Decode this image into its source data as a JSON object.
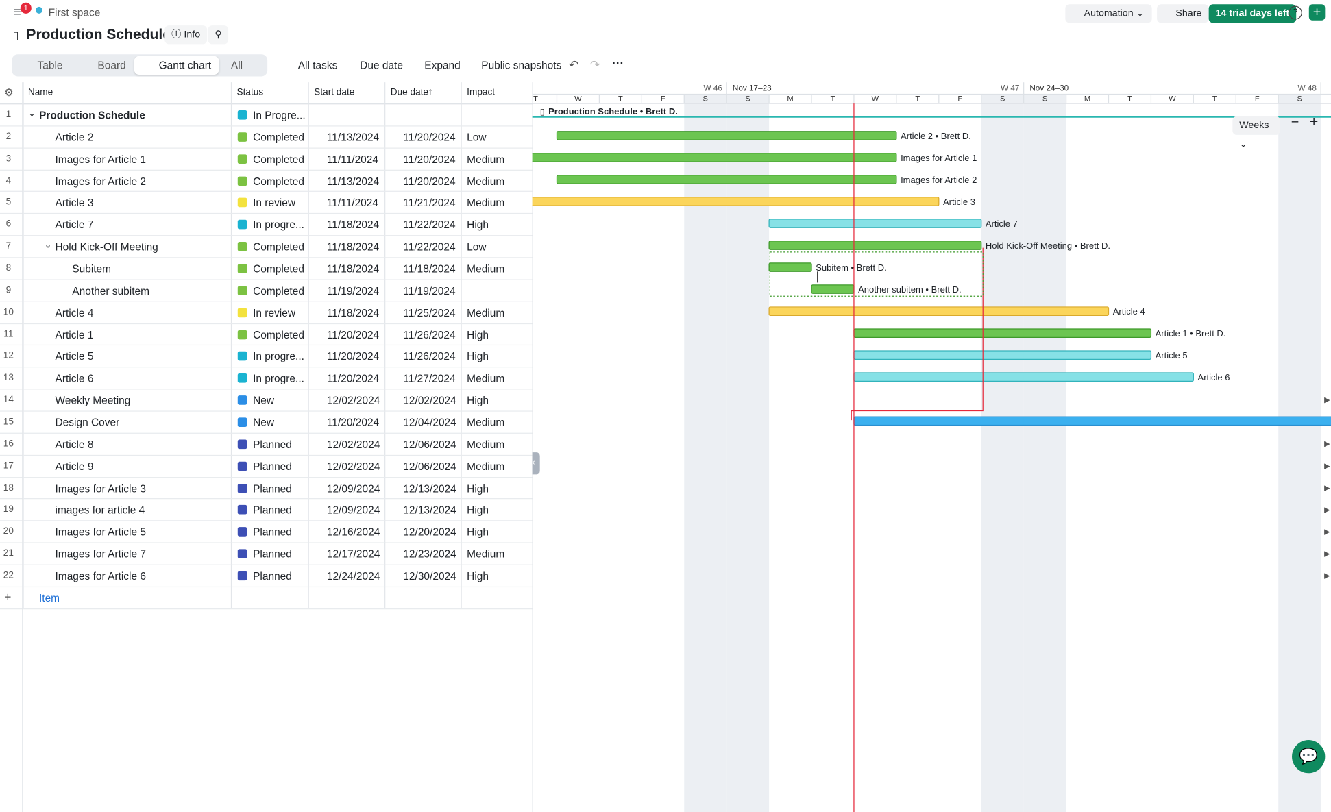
{
  "topbar": {
    "notifications": "1",
    "space": "First space",
    "automation": "Automation",
    "share": "Share",
    "trial": "14 trial days left"
  },
  "header": {
    "title": "Production Schedule",
    "info": "Info"
  },
  "views": [
    "Table",
    "Board",
    "Gantt chart",
    "All"
  ],
  "toolbar": [
    "All tasks",
    "Due date",
    "Expand",
    "Public snapshots"
  ],
  "columns": [
    "Name",
    "Status",
    "Start date",
    "Due date",
    "Impact"
  ],
  "rows": [
    {
      "no": 1,
      "level": 0,
      "collapsible": true,
      "name": "Production Schedule",
      "status": "In Progre...",
      "status_color": "#1ab3d1",
      "bar_label": "Production Schedule • Brett D."
    },
    {
      "no": 2,
      "level": 1,
      "name": "Article 2",
      "status": "Completed",
      "status_color": "#7cc242",
      "start": "11/13/2024",
      "due": "11/20/2024",
      "impact": "Low",
      "bar_label": "Article 2 • Brett D."
    },
    {
      "no": 3,
      "level": 1,
      "name": "Images for Article 1",
      "status": "Completed",
      "status_color": "#7cc242",
      "start": "11/11/2024",
      "due": "11/20/2024",
      "impact": "Medium",
      "bar_label": "Images for Article 1"
    },
    {
      "no": 4,
      "level": 1,
      "name": "Images for Article 2",
      "status": "Completed",
      "status_color": "#7cc242",
      "start": "11/13/2024",
      "due": "11/20/2024",
      "impact": "Medium",
      "bar_label": "Images for Article 2"
    },
    {
      "no": 5,
      "level": 1,
      "name": "Article 3",
      "status": "In review",
      "status_color": "#f3e23e",
      "start": "11/11/2024",
      "due": "11/21/2024",
      "impact": "Medium",
      "bar_label": "Article 3"
    },
    {
      "no": 6,
      "level": 1,
      "name": "Article 7",
      "status": "In progre...",
      "status_color": "#1ab3d1",
      "start": "11/18/2024",
      "due": "11/22/2024",
      "impact": "High",
      "bar_label": "Article 7"
    },
    {
      "no": 7,
      "level": 1,
      "collapsible": true,
      "name": "Hold Kick-Off Meeting",
      "status": "Completed",
      "status_color": "#7cc242",
      "start": "11/18/2024",
      "due": "11/22/2024",
      "impact": "Low",
      "bar_label": "Hold Kick-Off Meeting • Brett D."
    },
    {
      "no": 8,
      "level": 2,
      "name": "Subitem",
      "status": "Completed",
      "status_color": "#7cc242",
      "start": "11/18/2024",
      "due": "11/18/2024",
      "impact": "Medium",
      "bar_label": "Subitem • Brett D."
    },
    {
      "no": 9,
      "level": 2,
      "name": "Another subitem",
      "status": "Completed",
      "status_color": "#7cc242",
      "start": "11/19/2024",
      "due": "11/19/2024",
      "bar_label": "Another subitem • Brett D."
    },
    {
      "no": 10,
      "level": 1,
      "name": "Article 4",
      "status": "In review",
      "status_color": "#f3e23e",
      "start": "11/18/2024",
      "due": "11/25/2024",
      "impact": "Medium",
      "bar_label": "Article 4"
    },
    {
      "no": 11,
      "level": 1,
      "name": "Article 1",
      "status": "Completed",
      "status_color": "#7cc242",
      "start": "11/20/2024",
      "due": "11/26/2024",
      "impact": "High",
      "bar_label": "Article 1 • Brett D."
    },
    {
      "no": 12,
      "level": 1,
      "name": "Article 5",
      "status": "In progre...",
      "status_color": "#1ab3d1",
      "start": "11/20/2024",
      "due": "11/26/2024",
      "impact": "High",
      "bar_label": "Article 5"
    },
    {
      "no": 13,
      "level": 1,
      "name": "Article 6",
      "status": "In progre...",
      "status_color": "#1ab3d1",
      "start": "11/20/2024",
      "due": "11/27/2024",
      "impact": "Medium",
      "bar_label": "Article 6"
    },
    {
      "no": 14,
      "level": 1,
      "name": "Weekly Meeting",
      "status": "New",
      "status_color": "#2b8ee6",
      "start": "12/02/2024",
      "due": "12/02/2024",
      "impact": "High"
    },
    {
      "no": 15,
      "level": 1,
      "name": "Design Cover",
      "status": "New",
      "status_color": "#2b8ee6",
      "start": "11/20/2024",
      "due": "12/04/2024",
      "impact": "Medium"
    },
    {
      "no": 16,
      "level": 1,
      "name": "Article 8",
      "status": "Planned",
      "status_color": "#3d4fb5",
      "start": "12/02/2024",
      "due": "12/06/2024",
      "impact": "Medium"
    },
    {
      "no": 17,
      "level": 1,
      "name": "Article 9",
      "status": "Planned",
      "status_color": "#3d4fb5",
      "start": "12/02/2024",
      "due": "12/06/2024",
      "impact": "Medium"
    },
    {
      "no": 18,
      "level": 1,
      "name": "Images for Article 3",
      "status": "Planned",
      "status_color": "#3d4fb5",
      "start": "12/09/2024",
      "due": "12/13/2024",
      "impact": "High"
    },
    {
      "no": 19,
      "level": 1,
      "name": "images for article 4",
      "status": "Planned",
      "status_color": "#3d4fb5",
      "start": "12/09/2024",
      "due": "12/13/2024",
      "impact": "High"
    },
    {
      "no": 20,
      "level": 1,
      "name": "Images for Article 5",
      "status": "Planned",
      "status_color": "#3d4fb5",
      "start": "12/16/2024",
      "due": "12/20/2024",
      "impact": "High"
    },
    {
      "no": 21,
      "level": 1,
      "name": "Images for Article 7",
      "status": "Planned",
      "status_color": "#3d4fb5",
      "start": "12/17/2024",
      "due": "12/23/2024",
      "impact": "Medium"
    },
    {
      "no": 22,
      "level": 1,
      "name": "Images for Article 6",
      "status": "Planned",
      "status_color": "#3d4fb5",
      "start": "12/24/2024",
      "due": "12/30/2024",
      "impact": "High"
    }
  ],
  "add_item": "Item",
  "gantt": {
    "weeks": [
      {
        "week": "W 46",
        "range": "Nov 17–23"
      },
      {
        "week": "W 47",
        "range": "Nov 24–30"
      },
      {
        "week": "W 48"
      }
    ],
    "days": [
      "T",
      "W",
      "T",
      "F",
      "S",
      "S",
      "M",
      "T",
      "W",
      "T",
      "F",
      "S",
      "S",
      "M",
      "T",
      "W",
      "T",
      "F",
      "S"
    ],
    "zoom": "Weeks"
  }
}
